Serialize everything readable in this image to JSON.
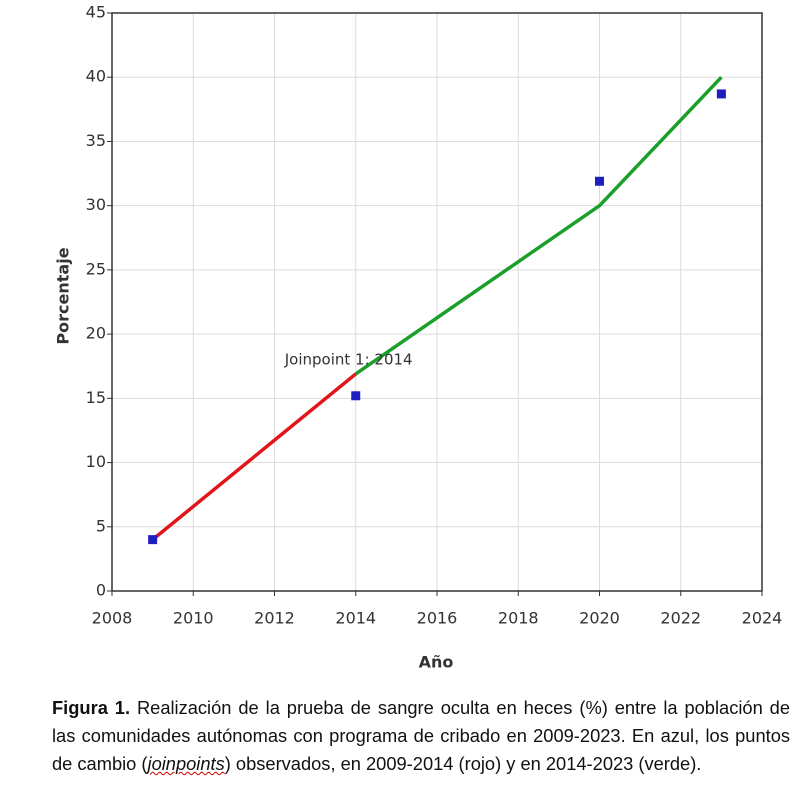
{
  "chart_data": {
    "type": "scatter",
    "xlabel": "Año",
    "ylabel": "Porcentaje",
    "xlim": [
      2008,
      2024
    ],
    "xticks": [
      2008,
      2010,
      2012,
      2014,
      2016,
      2018,
      2020,
      2022,
      2024
    ],
    "ylim": [
      0,
      45
    ],
    "yticks": [
      0,
      5,
      10,
      15,
      20,
      25,
      30,
      35,
      40,
      45
    ],
    "grid": true,
    "series": [
      {
        "kind": "points",
        "color": "#1f1fbf",
        "x": [
          2009,
          2014,
          2020,
          2023
        ],
        "values": [
          4.0,
          15.2,
          31.9,
          38.7
        ]
      },
      {
        "kind": "line",
        "color": "#e0161b",
        "x": [
          2009,
          2014
        ],
        "values": [
          4.0,
          16.9
        ]
      },
      {
        "kind": "line",
        "color": "#1aa02a",
        "x": [
          2014,
          2020,
          2023
        ],
        "values": [
          16.9,
          30.0,
          40.0
        ]
      }
    ],
    "annotation": "Joinpoint 1: 2014"
  },
  "caption": {
    "label": "Figura 1.",
    "text_before": " Realización de la prueba de sangre oculta en heces (%) entre la población de las comunidades autónomas con programa de cribado en 2009-2023. En azul, los puntos de cambio (",
    "emphasis": "joinpoints",
    "text_after": ") observados, en 2009-2014 (rojo) y en 2014-2023 (verde)."
  }
}
